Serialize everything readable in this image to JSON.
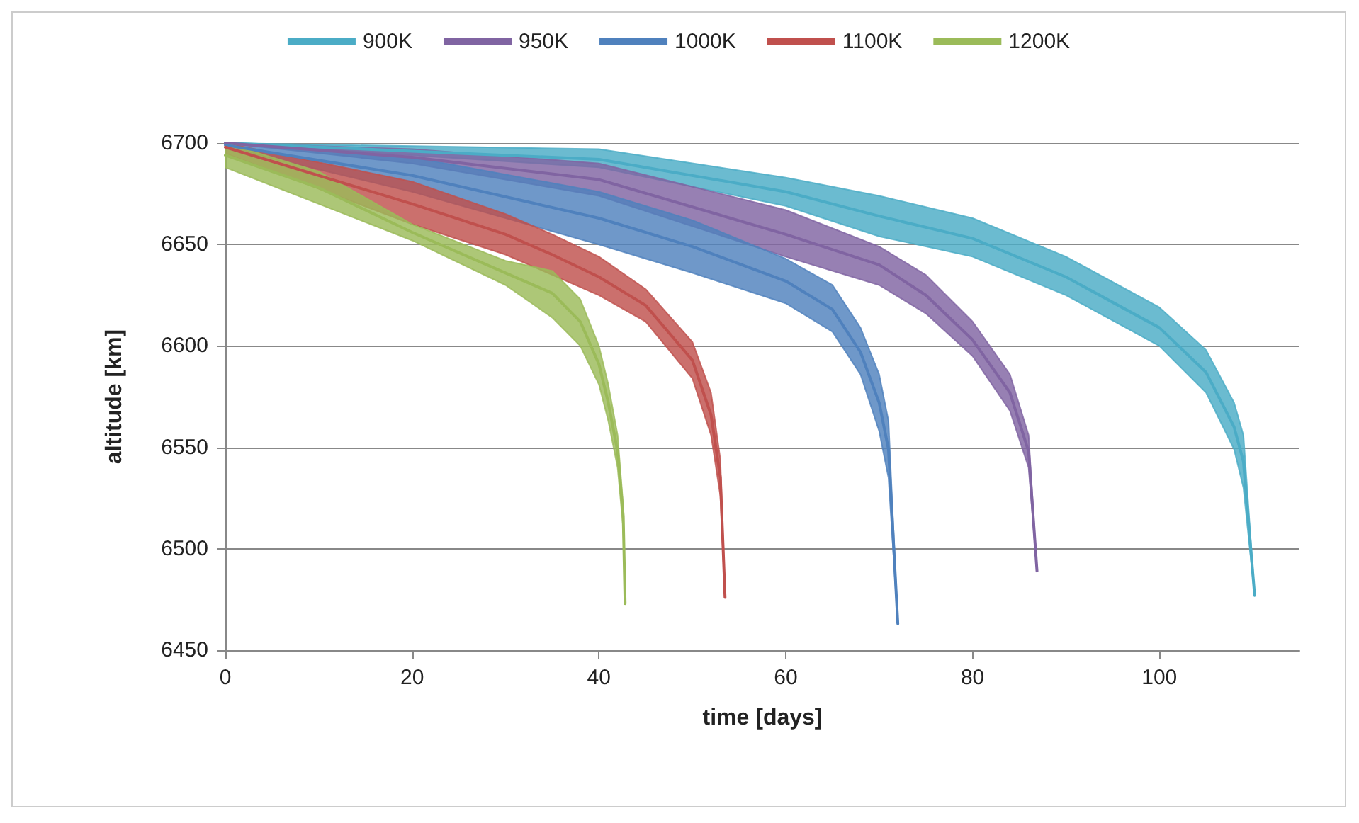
{
  "chart_data": {
    "type": "line",
    "xlabel": "time [days]",
    "ylabel": "altitude [km]",
    "xlim": [
      0,
      115
    ],
    "xticks": [
      0,
      20,
      40,
      60,
      80,
      100
    ],
    "ylim": [
      6450,
      6700
    ],
    "yticks": [
      6450,
      6500,
      6550,
      6600,
      6650,
      6700
    ],
    "grid": "y",
    "legend": "top",
    "marker": "none",
    "line_style": "solid",
    "series": [
      {
        "name": "900K",
        "color": "#4bacc6",
        "x": [
          0,
          40,
          60,
          70,
          80,
          90,
          100,
          105,
          108,
          109,
          110.2
        ],
        "values": [
          6700,
          6692,
          6676,
          6664,
          6653,
          6634,
          6609,
          6587,
          6560,
          6543,
          6477
        ],
        "upper": [
          6700,
          6697,
          6683,
          6674,
          6663,
          6644,
          6619,
          6598,
          6572,
          6556,
          6477
        ],
        "lower": [
          6700,
          6688,
          6669,
          6654,
          6644,
          6625,
          6600,
          6577,
          6549,
          6530,
          6477
        ]
      },
      {
        "name": "950K",
        "color": "#8064a2",
        "x": [
          0,
          20,
          40,
          60,
          70,
          75,
          80,
          84,
          86,
          86.9
        ],
        "values": [
          6700,
          6693,
          6682,
          6655,
          6640,
          6625,
          6603,
          6577,
          6548,
          6489
        ],
        "upper": [
          6700,
          6697,
          6690,
          6667,
          6649,
          6635,
          6612,
          6586,
          6556,
          6489
        ],
        "lower": [
          6700,
          6690,
          6674,
          6644,
          6630,
          6616,
          6595,
          6568,
          6540,
          6489
        ]
      },
      {
        "name": "1000K",
        "color": "#4f81bd",
        "x": [
          0,
          20,
          40,
          50,
          60,
          65,
          68,
          70,
          71,
          72
        ],
        "values": [
          6699,
          6684,
          6663,
          6649,
          6632,
          6618,
          6597,
          6572,
          6549,
          6463
        ],
        "upper": [
          6700,
          6693,
          6676,
          6662,
          6643,
          6630,
          6609,
          6586,
          6563,
          6463
        ],
        "lower": [
          6698,
          6676,
          6650,
          6636,
          6621,
          6607,
          6586,
          6558,
          6535,
          6463
        ]
      },
      {
        "name": "1100K",
        "color": "#c0504d",
        "x": [
          0,
          20,
          30,
          35,
          40,
          45,
          50,
          52,
          53,
          53.5
        ],
        "values": [
          6698,
          6670,
          6655,
          6645,
          6634,
          6620,
          6593,
          6566,
          6535,
          6476
        ],
        "upper": [
          6700,
          6681,
          6665,
          6655,
          6644,
          6628,
          6602,
          6577,
          6544,
          6476
        ],
        "lower": [
          6695,
          6660,
          6645,
          6635,
          6625,
          6612,
          6584,
          6556,
          6526,
          6476
        ]
      },
      {
        "name": "1200K",
        "color": "#9bbb59",
        "x": [
          0,
          10,
          20,
          30,
          35,
          38,
          40,
          41,
          42,
          42.6,
          42.8
        ],
        "values": [
          6694,
          6678,
          6656,
          6636,
          6626,
          6612,
          6591,
          6572,
          6548,
          6516,
          6473
        ],
        "upper": [
          6700,
          6686,
          6660,
          6642,
          6637,
          6623,
          6600,
          6581,
          6556,
          6521,
          6473
        ],
        "lower": [
          6688,
          6670,
          6652,
          6630,
          6614,
          6600,
          6581,
          6563,
          6540,
          6510,
          6473
        ]
      }
    ]
  }
}
